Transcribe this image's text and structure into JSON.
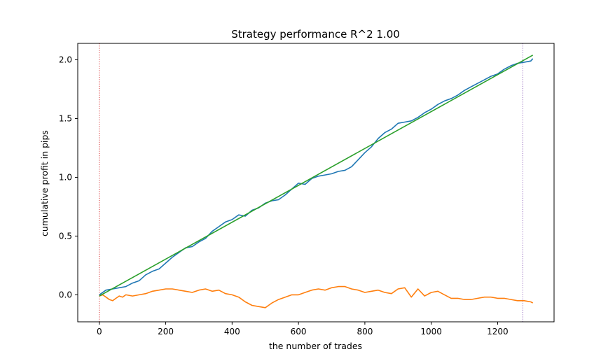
{
  "chart_data": {
    "type": "line",
    "title": "Strategy performance R^2 1.00",
    "xlabel": "the number of trades",
    "ylabel": "cumulative profit in pips",
    "xlim": [
      -65,
      1370
    ],
    "ylim": [
      -0.23,
      2.14
    ],
    "x_ticks": [
      0,
      200,
      400,
      600,
      800,
      1000,
      1200
    ],
    "y_ticks": [
      0.0,
      0.5,
      1.0,
      1.5,
      2.0
    ],
    "x_tick_labels": [
      "0",
      "200",
      "400",
      "600",
      "800",
      "1000",
      "1200"
    ],
    "y_tick_labels": [
      "0.0",
      "0.5",
      "1.0",
      "1.5",
      "2.0"
    ],
    "grid": false,
    "legend": "none",
    "series": [
      {
        "color": "#1f77b4",
        "x": [
          0,
          20,
          40,
          60,
          80,
          100,
          120,
          140,
          160,
          180,
          200,
          220,
          240,
          260,
          280,
          300,
          320,
          340,
          360,
          380,
          400,
          420,
          440,
          460,
          480,
          500,
          520,
          540,
          560,
          580,
          600,
          620,
          640,
          660,
          680,
          700,
          720,
          740,
          760,
          780,
          800,
          820,
          840,
          860,
          880,
          900,
          920,
          940,
          960,
          980,
          1000,
          1020,
          1040,
          1060,
          1080,
          1100,
          1120,
          1140,
          1160,
          1180,
          1200,
          1220,
          1240,
          1260,
          1280,
          1300,
          1306
        ],
        "y": [
          0.0,
          0.04,
          0.05,
          0.06,
          0.07,
          0.1,
          0.12,
          0.17,
          0.2,
          0.22,
          0.27,
          0.32,
          0.36,
          0.4,
          0.41,
          0.45,
          0.48,
          0.54,
          0.58,
          0.62,
          0.64,
          0.68,
          0.67,
          0.72,
          0.74,
          0.78,
          0.8,
          0.81,
          0.85,
          0.9,
          0.95,
          0.94,
          0.99,
          1.01,
          1.02,
          1.03,
          1.05,
          1.06,
          1.09,
          1.15,
          1.21,
          1.26,
          1.33,
          1.38,
          1.41,
          1.46,
          1.47,
          1.48,
          1.51,
          1.55,
          1.58,
          1.62,
          1.65,
          1.67,
          1.7,
          1.74,
          1.77,
          1.8,
          1.83,
          1.86,
          1.88,
          1.92,
          1.95,
          1.97,
          1.98,
          1.99,
          2.01
        ]
      },
      {
        "color": "#ff7f0e",
        "x": [
          0,
          10,
          20,
          30,
          40,
          50,
          60,
          70,
          80,
          100,
          120,
          140,
          160,
          180,
          200,
          220,
          240,
          260,
          280,
          300,
          320,
          340,
          360,
          380,
          400,
          420,
          440,
          460,
          480,
          500,
          520,
          540,
          560,
          580,
          600,
          620,
          640,
          660,
          680,
          700,
          720,
          740,
          760,
          780,
          800,
          820,
          840,
          860,
          880,
          900,
          920,
          940,
          960,
          980,
          1000,
          1020,
          1040,
          1060,
          1080,
          1100,
          1120,
          1140,
          1160,
          1180,
          1200,
          1220,
          1240,
          1260,
          1280,
          1300,
          1306
        ],
        "y": [
          -0.01,
          0.0,
          -0.02,
          -0.04,
          -0.05,
          -0.03,
          -0.01,
          -0.02,
          0.0,
          -0.01,
          0.0,
          0.01,
          0.03,
          0.04,
          0.05,
          0.05,
          0.04,
          0.03,
          0.02,
          0.04,
          0.05,
          0.03,
          0.04,
          0.01,
          0.0,
          -0.02,
          -0.06,
          -0.09,
          -0.1,
          -0.11,
          -0.07,
          -0.04,
          -0.02,
          0.0,
          0.0,
          0.02,
          0.04,
          0.05,
          0.04,
          0.06,
          0.07,
          0.07,
          0.05,
          0.04,
          0.02,
          0.03,
          0.04,
          0.02,
          0.01,
          0.05,
          0.06,
          -0.02,
          0.05,
          -0.01,
          0.02,
          0.03,
          0.0,
          -0.03,
          -0.03,
          -0.04,
          -0.04,
          -0.03,
          -0.02,
          -0.02,
          -0.03,
          -0.03,
          -0.04,
          -0.05,
          -0.05,
          -0.06,
          -0.07
        ]
      },
      {
        "color": "#2ca02c",
        "x": [
          0,
          1306
        ],
        "y": [
          -0.01,
          2.04
        ]
      }
    ],
    "vlines": [
      {
        "x": 0,
        "color": "#d62728",
        "style": "dotted"
      },
      {
        "x": 1276,
        "color": "#9467bd",
        "style": "dotted"
      }
    ]
  }
}
